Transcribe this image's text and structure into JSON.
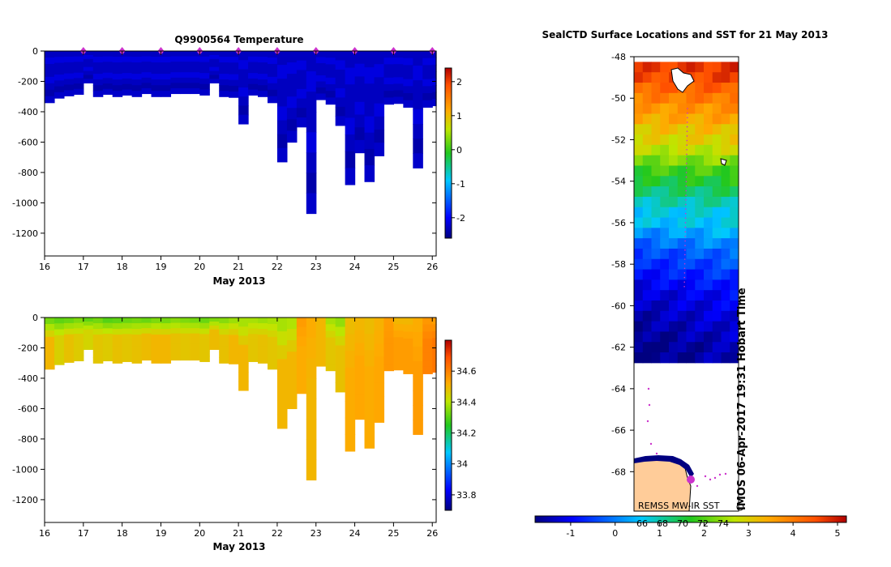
{
  "chart_data": [
    {
      "type": "heatmap",
      "title": "Q9900564  Temperature",
      "xlabel": "May 2013",
      "ylabel": "",
      "x_ticks": [
        "16",
        "17",
        "18",
        "19",
        "20",
        "21",
        "22",
        "23",
        "24",
        "25",
        "26"
      ],
      "xlim": [
        16,
        26.1
      ],
      "y_ticks": [
        "0",
        "-200",
        "-400",
        "-600",
        "-800",
        "-1000",
        "-1200"
      ],
      "ylim": [
        -1350,
        0
      ],
      "colorbar": {
        "ticks": [
          "2",
          "1",
          "0",
          "-1",
          "-2"
        ],
        "range": [
          -2.6,
          2.4
        ]
      },
      "profiles": {
        "x": [
          16.0,
          16.25,
          16.5,
          16.75,
          17.0,
          17.25,
          17.5,
          17.75,
          18.0,
          18.25,
          18.5,
          18.75,
          19.0,
          19.25,
          19.5,
          19.75,
          20.0,
          20.25,
          20.5,
          20.75,
          21.0,
          21.25,
          21.5,
          21.75,
          22.0,
          22.25,
          22.5,
          22.75,
          23.0,
          23.25,
          23.5,
          23.75,
          24.0,
          24.25,
          24.5,
          24.75,
          25.0,
          25.25,
          25.5,
          25.75,
          26.0
        ],
        "max_depth": [
          340,
          310,
          295,
          285,
          210,
          300,
          285,
          300,
          290,
          300,
          280,
          300,
          300,
          280,
          280,
          280,
          290,
          210,
          300,
          305,
          480,
          290,
          300,
          340,
          730,
          600,
          500,
          1070,
          320,
          350,
          490,
          880,
          670,
          860,
          690,
          350,
          345,
          370,
          770,
          370,
          360
        ],
        "surface_temp": [
          -2.3,
          -2.3,
          -2.3,
          -2.3,
          -2.3,
          -2.3,
          -2.3,
          -2.3,
          -2.3,
          -2.3,
          -2.3,
          -2.3,
          -2.3,
          -2.3,
          -2.3,
          -2.3,
          -2.3,
          -2.3,
          -2.3,
          -2.3,
          -2.3,
          -2.3,
          -2.3,
          -2.3,
          -2.3,
          -2.3,
          -2.3,
          -2.3,
          -2.3,
          -2.3,
          -2.3,
          -2.3,
          -2.3,
          -2.3,
          -2.3,
          -2.3,
          -2.3,
          -2.3,
          -2.3,
          -2.3,
          -2.3
        ]
      },
      "surface_markers_x": [
        17,
        18,
        19,
        20,
        21,
        22,
        23,
        24,
        25,
        26
      ]
    },
    {
      "type": "heatmap",
      "title": "",
      "xlabel": "May 2013",
      "ylabel": "",
      "x_ticks": [
        "16",
        "17",
        "18",
        "19",
        "20",
        "21",
        "22",
        "23",
        "24",
        "25",
        "26"
      ],
      "xlim": [
        16,
        26.1
      ],
      "y_ticks": [
        "0",
        "-200",
        "-400",
        "-600",
        "-800",
        "-1000",
        "-1200"
      ],
      "ylim": [
        -1350,
        0
      ],
      "colorbar": {
        "ticks": [
          "34.6",
          "34.4",
          "34.2",
          "34",
          "33.8"
        ],
        "range": [
          33.7,
          34.8
        ]
      },
      "profiles": {
        "x": [
          16.0,
          16.25,
          16.5,
          16.75,
          17.0,
          17.25,
          17.5,
          17.75,
          18.0,
          18.25,
          18.5,
          18.75,
          19.0,
          19.25,
          19.5,
          19.75,
          20.0,
          20.25,
          20.5,
          20.75,
          21.0,
          21.25,
          21.5,
          21.75,
          22.0,
          22.25,
          22.5,
          22.75,
          23.0,
          23.25,
          23.5,
          23.75,
          24.0,
          24.25,
          24.5,
          24.75,
          25.0,
          25.25,
          25.5,
          25.75,
          26.0
        ],
        "max_depth": [
          340,
          310,
          295,
          285,
          210,
          300,
          285,
          300,
          290,
          300,
          280,
          300,
          300,
          280,
          280,
          280,
          290,
          210,
          300,
          305,
          480,
          290,
          300,
          340,
          730,
          600,
          500,
          1070,
          320,
          350,
          490,
          880,
          670,
          860,
          690,
          350,
          345,
          370,
          770,
          370,
          360
        ],
        "surface_salinity": [
          34.33,
          34.31,
          34.32,
          34.34,
          34.31,
          34.33,
          34.3,
          34.31,
          34.32,
          34.33,
          34.32,
          34.34,
          34.33,
          34.35,
          34.34,
          34.33,
          34.32,
          34.34,
          34.35,
          34.37,
          34.38,
          34.38,
          34.37,
          34.38,
          34.38,
          34.39,
          34.55,
          34.52,
          34.5,
          34.38,
          34.36,
          34.49,
          34.5,
          34.49,
          34.51,
          34.55,
          34.5,
          34.5,
          34.52,
          34.56,
          34.55
        ],
        "deep_salinity": [
          34.5,
          34.45,
          34.48,
          34.46,
          34.44,
          34.47,
          34.46,
          34.48,
          34.47,
          34.48,
          34.49,
          34.5,
          34.5,
          34.48,
          34.47,
          34.48,
          34.47,
          34.49,
          34.48,
          34.5,
          34.5,
          34.47,
          34.48,
          34.47,
          34.5,
          34.5,
          34.52,
          34.5,
          34.5,
          34.47,
          34.48,
          34.52,
          34.53,
          34.52,
          34.53,
          34.56,
          34.55,
          34.55,
          34.55,
          34.6,
          34.62
        ]
      }
    },
    {
      "type": "heatmap",
      "title": "SealCTD Surface Locations and SST for 21 May 2013",
      "xlabel": "",
      "ylabel": "",
      "y_ticks": [
        "-48",
        "-50",
        "-52",
        "-54",
        "-56",
        "-58",
        "-60",
        "-62",
        "-64",
        "-66",
        "-68"
      ],
      "ylim": [
        -69.9,
        -48
      ],
      "colorbar": {
        "ticks": [
          "-1",
          "0",
          "1",
          "2",
          "3",
          "4",
          "5"
        ],
        "range": [
          -1.8,
          5.2
        ]
      },
      "colorbar_overlay_labels": [
        "66",
        "68",
        "70",
        "72",
        "74"
      ],
      "sst_rows": {
        "lat": [
          -48.5,
          -49.0,
          -49.5,
          -50.0,
          -50.5,
          -51.0,
          -51.5,
          -52.0,
          -52.5,
          -53.0,
          -53.5,
          -54.0,
          -54.5,
          -55.0,
          -55.5,
          -56.0,
          -56.5,
          -57.0,
          -57.5,
          -58.0,
          -58.5,
          -59.0,
          -59.5,
          -60.0,
          -60.5,
          -61.0,
          -61.5,
          -62.0,
          -62.5
        ],
        "sst": [
          4.7,
          4.6,
          4.3,
          4.0,
          3.7,
          3.5,
          3.2,
          3.0,
          2.7,
          2.3,
          1.9,
          1.6,
          1.3,
          1.0,
          0.7,
          0.6,
          0.3,
          0.0,
          -0.3,
          -0.5,
          -0.7,
          -0.9,
          -1.1,
          -1.2,
          -1.3,
          -1.4,
          -1.5,
          -1.6,
          -1.6
        ]
      },
      "ice_edge_lat": -62.8,
      "land_edge_lat": -67.8,
      "annotation_source": "REMSS MW-IR SST",
      "annotation_credit": "IMOS 06-Apr-2017 19:31 Hobart Time"
    }
  ],
  "colors": {
    "land": "#ffcc99",
    "track": "#cc33cc",
    "surface_marker": "#cc33cc"
  }
}
